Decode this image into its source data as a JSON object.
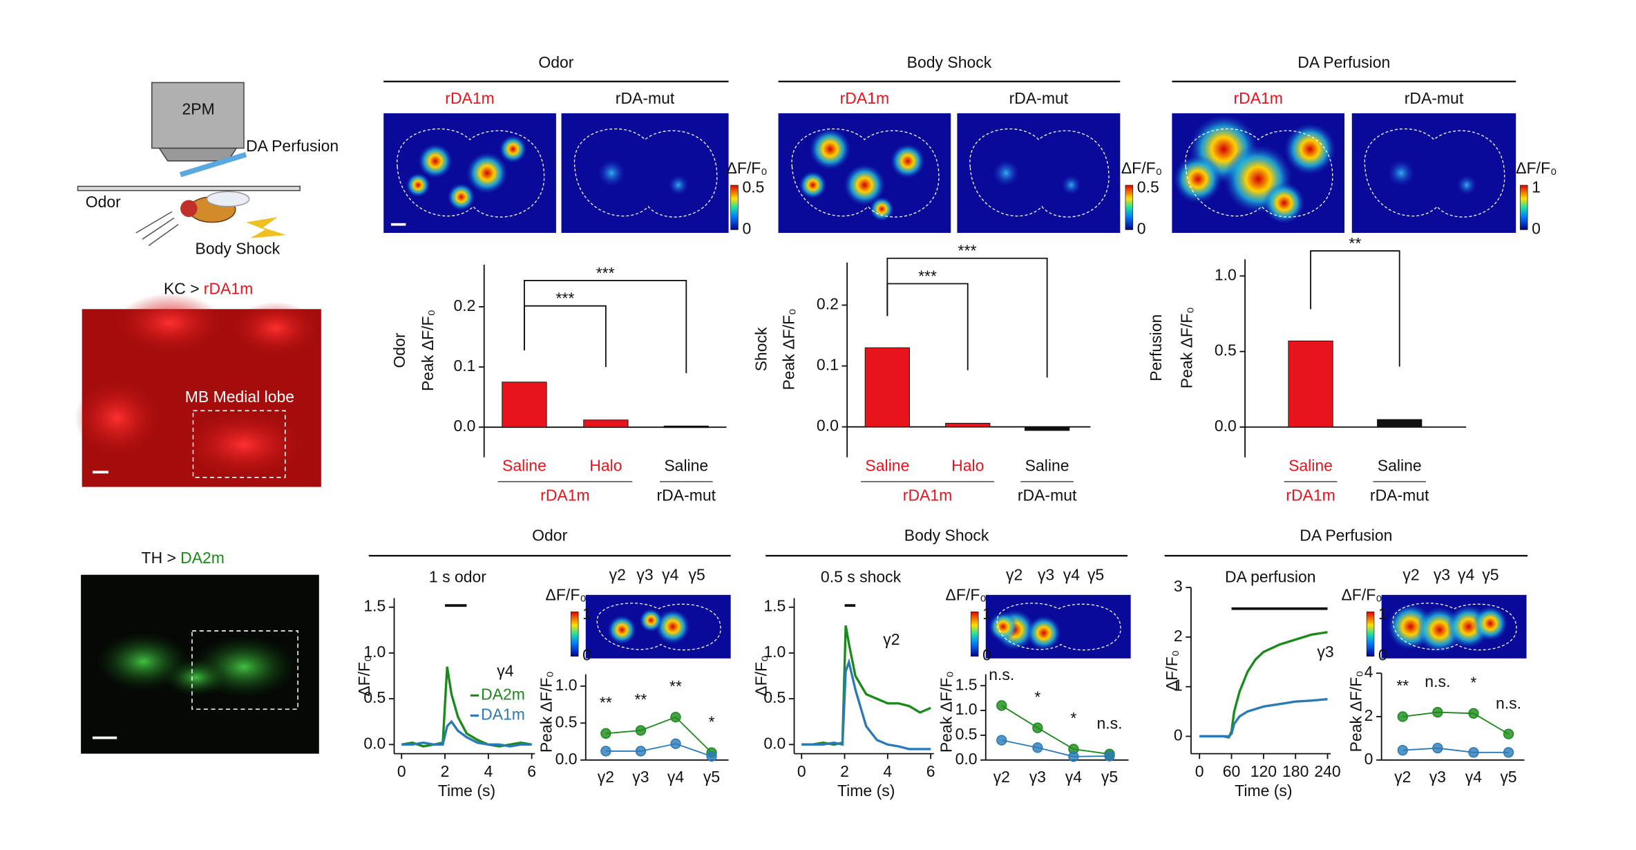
{
  "figure": {
    "schematic": {
      "microscope": "2PM",
      "perfusion": "DA Perfusion",
      "odor": "Odor",
      "shock": "Body Shock"
    },
    "image_top": {
      "title_prefix": "KC >",
      "title_reporter": "rDA1m",
      "roi": "MB Medial lobe"
    },
    "image_bottom": {
      "title_prefix": "TH >",
      "title_reporter": "DA2m"
    },
    "top_sections": [
      {
        "title": "Odor",
        "left": "rDA1m",
        "right": "rDA-mut",
        "colorbar_label": "ΔF/F₀",
        "colorbar_max": 0.5,
        "colorbar_min": 0
      },
      {
        "title": "Body Shock",
        "left": "rDA1m",
        "right": "rDA-mut",
        "colorbar_label": "ΔF/F₀",
        "colorbar_max": 0.5,
        "colorbar_min": 0
      },
      {
        "title": "DA Perfusion",
        "left": "rDA1m",
        "right": "rDA-mut",
        "colorbar_label": "ΔF/F₀",
        "colorbar_max": 1,
        "colorbar_min": 0
      }
    ],
    "bottom_sections": [
      {
        "title": "Odor",
        "heatmap_labels": [
          "γ2",
          "γ3",
          "γ4",
          "γ5"
        ],
        "colorbar_label": "ΔF/F₀",
        "colorbar_max": 1,
        "colorbar_min": 0
      },
      {
        "title": "Body Shock",
        "heatmap_labels": [
          "γ2",
          "γ3",
          "γ4",
          "γ5"
        ],
        "colorbar_label": "ΔF/F₀",
        "colorbar_max": 1,
        "colorbar_min": 0
      },
      {
        "title": "DA Perfusion",
        "heatmap_labels": [
          "γ2",
          "γ3",
          "γ4",
          "γ5"
        ],
        "colorbar_label": "ΔF/F₀",
        "colorbar_max": 1,
        "colorbar_min": 0
      }
    ]
  },
  "chart_data": [
    {
      "type": "bar",
      "ylabel_condition": "Odor",
      "ylabel": "Peak ΔF/F₀",
      "ylim": [
        -0.05,
        0.27
      ],
      "yticks": [
        {
          "value": 0,
          "label": "0.0"
        },
        0.1,
        0.2
      ],
      "groups": [
        {
          "name": "rDA1m",
          "color": "#e8141b",
          "categories": [
            "Saline",
            "Halo"
          ],
          "values": [
            0.075,
            0.012
          ]
        },
        {
          "name": "rDA-mut",
          "color": "#111111",
          "categories": [
            "Saline"
          ],
          "values": [
            0.002
          ]
        }
      ],
      "significance": [
        "***",
        "***"
      ]
    },
    {
      "type": "bar",
      "ylabel_condition": "Shock",
      "ylabel": "Peak ΔF/F₀",
      "ylim": [
        -0.05,
        0.27
      ],
      "yticks": [
        {
          "value": 0,
          "label": "0.0"
        },
        0.1,
        0.2
      ],
      "groups": [
        {
          "name": "rDA1m",
          "color": "#e8141b",
          "categories": [
            "Saline",
            "Halo"
          ],
          "values": [
            0.13,
            0.006
          ]
        },
        {
          "name": "rDA-mut",
          "color": "#111111",
          "categories": [
            "Saline"
          ],
          "values": [
            -0.006
          ]
        }
      ],
      "significance": [
        "***",
        "***"
      ]
    },
    {
      "type": "bar",
      "ylabel_condition": "Perfusion",
      "ylabel": "Peak ΔF/F₀",
      "ylim": [
        -0.2,
        1.11
      ],
      "yticks": [
        {
          "value": 0,
          "label": "0.0"
        },
        0.5,
        {
          "value": 1,
          "label": "1.0"
        }
      ],
      "groups": [
        {
          "name": "rDA1m",
          "color": "#e8141b",
          "categories": [
            "Saline"
          ],
          "values": [
            0.57
          ]
        },
        {
          "name": "rDA-mut",
          "color": "#111111",
          "categories": [
            "Saline"
          ],
          "values": [
            0.05
          ]
        }
      ],
      "significance": [
        "**"
      ]
    },
    {
      "type": "line",
      "title": "1 s odor",
      "annotation": "γ4",
      "xlabel": "Time (s)",
      "ylabel": "ΔF/F₀",
      "legend": true,
      "xlim": [
        0,
        6
      ],
      "xticks": [
        0,
        2,
        4,
        6
      ],
      "ylim": [
        -0.1,
        1.6
      ],
      "yticks": [
        {
          "value": 0,
          "label": "0.0"
        },
        0.5,
        {
          "value": 1,
          "label": "1.0"
        },
        1.5
      ],
      "stimulus": [
        2,
        3
      ],
      "x": [
        0,
        0.5,
        1,
        1.5,
        1.9,
        2.1,
        2.3,
        2.6,
        3,
        3.5,
        4,
        4.5,
        5,
        5.5,
        6
      ],
      "series": [
        {
          "name": "DA2m",
          "color": "#1a8a1a",
          "values": [
            0,
            0.02,
            -0.02,
            0,
            0.02,
            0.85,
            0.55,
            0.3,
            0.12,
            0.05,
            0,
            -0.02,
            0,
            0.02,
            0
          ]
        },
        {
          "name": "DA1m",
          "color": "#2a7ab8",
          "values": [
            0,
            0,
            0.02,
            0,
            0,
            0.2,
            0.25,
            0.15,
            0.08,
            0.02,
            0,
            0,
            -0.02,
            0,
            0
          ]
        }
      ]
    },
    {
      "type": "line",
      "title": "0.5 s shock",
      "annotation": "γ2",
      "xlabel": "Time (s)",
      "ylabel": "ΔF/F₀",
      "legend": false,
      "xlim": [
        0,
        6
      ],
      "xticks": [
        0,
        2,
        4,
        6
      ],
      "ylim": [
        -0.1,
        1.6
      ],
      "yticks": [
        {
          "value": 0,
          "label": "0.0"
        },
        0.5,
        {
          "value": 1,
          "label": "1.0"
        },
        1.5
      ],
      "stimulus": [
        2,
        2.5
      ],
      "x": [
        0,
        0.5,
        1,
        1.5,
        1.9,
        2.05,
        2.2,
        2.5,
        3,
        3.5,
        4,
        4.5,
        5,
        5.5,
        6
      ],
      "series": [
        {
          "name": "DA2m",
          "color": "#1a8a1a",
          "values": [
            0,
            0,
            0.02,
            0,
            0.02,
            1.3,
            1.1,
            0.75,
            0.55,
            0.5,
            0.45,
            0.45,
            0.42,
            0.35,
            0.4
          ]
        },
        {
          "name": "DA1m",
          "color": "#2a7ab8",
          "values": [
            0,
            0,
            0,
            0.02,
            0,
            0.8,
            0.9,
            0.6,
            0.2,
            0.05,
            0,
            -0.02,
            -0.05,
            -0.05,
            -0.05
          ]
        }
      ]
    },
    {
      "type": "line",
      "title": "DA perfusion",
      "annotation": "γ3",
      "xlabel": "Time (s)",
      "ylabel": "ΔF/F₀",
      "legend": false,
      "xlim": [
        0,
        240
      ],
      "xticks": [
        0,
        60,
        120,
        180,
        240
      ],
      "ylim": [
        -0.35,
        3
      ],
      "yticks": [
        0,
        1,
        2,
        3
      ],
      "stimulus": [
        60,
        240
      ],
      "x": [
        0,
        15,
        30,
        45,
        55,
        60,
        65,
        75,
        90,
        105,
        120,
        150,
        180,
        210,
        240
      ],
      "series": [
        {
          "name": "DA2m",
          "color": "#1a8a1a",
          "values": [
            0,
            0,
            0,
            0,
            -0.02,
            0.1,
            0.5,
            0.9,
            1.3,
            1.55,
            1.7,
            1.85,
            1.95,
            2.05,
            2.1
          ]
        },
        {
          "name": "DA1m",
          "color": "#2a7ab8",
          "values": [
            0,
            0,
            0,
            0,
            0,
            0.05,
            0.25,
            0.4,
            0.5,
            0.55,
            0.6,
            0.65,
            0.7,
            0.72,
            0.75
          ]
        }
      ]
    },
    {
      "type": "point",
      "ylabel": "Peak ΔF/F₀",
      "categories": [
        "γ2",
        "γ3",
        "γ4",
        "γ5"
      ],
      "ylim": [
        0,
        1.16
      ],
      "yticks": [
        {
          "value": 0,
          "label": "0.0"
        },
        0.5,
        {
          "value": 1,
          "label": "1.0"
        }
      ],
      "series": [
        {
          "name": "DA2m",
          "color": "#1a8a1a",
          "values": [
            0.36,
            0.4,
            0.58,
            0.1
          ]
        },
        {
          "name": "DA1m",
          "color": "#2a7ab8",
          "values": [
            0.12,
            0.12,
            0.22,
            0.05
          ]
        }
      ],
      "annotations": [
        "**",
        "**",
        "**",
        "*"
      ]
    },
    {
      "type": "point",
      "ylabel": "Peak ΔF/F₀",
      "categories": [
        "γ2",
        "γ3",
        "γ4",
        "γ5"
      ],
      "ylim": [
        0,
        1.73
      ],
      "yticks": [
        {
          "value": 0,
          "label": "0.0"
        },
        0.5,
        {
          "value": 1,
          "label": "1.0"
        },
        1.5
      ],
      "series": [
        {
          "name": "DA2m",
          "color": "#1a8a1a",
          "values": [
            1.1,
            0.65,
            0.22,
            0.12
          ]
        },
        {
          "name": "DA1m",
          "color": "#2a7ab8",
          "values": [
            0.4,
            0.25,
            0.07,
            0.08
          ]
        }
      ],
      "annotations": [
        "n.s.",
        "*",
        "*",
        "n.s."
      ]
    },
    {
      "type": "point",
      "ylabel": "Peak ΔF/F₀",
      "categories": [
        "γ2",
        "γ3",
        "γ4",
        "γ5"
      ],
      "ylim": [
        0,
        4
      ],
      "yticks": [
        0,
        2,
        4
      ],
      "series": [
        {
          "name": "DA2m",
          "color": "#1a8a1a",
          "values": [
            2.0,
            2.2,
            2.15,
            1.2
          ]
        },
        {
          "name": "DA1m",
          "color": "#2a7ab8",
          "values": [
            0.45,
            0.55,
            0.35,
            0.35
          ]
        }
      ],
      "annotations": [
        "**",
        "n.s.",
        "*",
        "n.s."
      ]
    }
  ]
}
